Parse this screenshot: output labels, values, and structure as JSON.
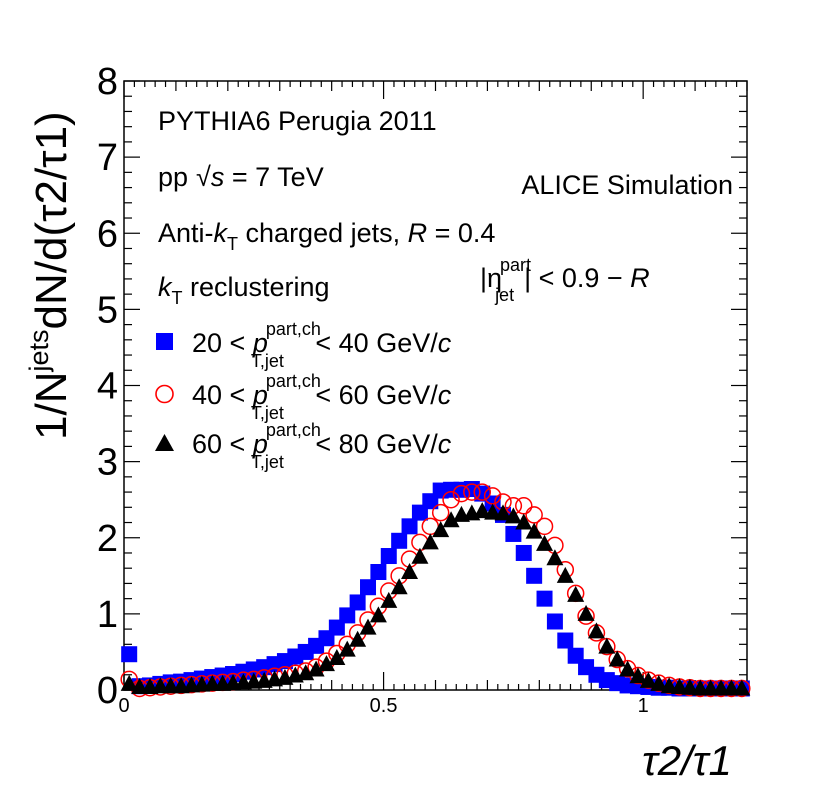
{
  "chart_data": {
    "type": "scatter",
    "title": "",
    "xlabel": "τ2/τ1",
    "ylabel_main": "1/N",
    "ylabel_sup": "jets",
    "ylabel_rest": "dN/d(τ2/τ1)",
    "xlim": [
      0,
      1.2
    ],
    "ylim": [
      0,
      8
    ],
    "x_ticks": [
      {
        "value": 0,
        "label": "0"
      },
      {
        "value": 0.5,
        "label": "0.5"
      },
      {
        "value": 1,
        "label": "1"
      }
    ],
    "y_ticks": [
      {
        "value": 0,
        "label": "0"
      },
      {
        "value": 1,
        "label": "1"
      },
      {
        "value": 2,
        "label": "2"
      },
      {
        "value": 3,
        "label": "3"
      },
      {
        "value": 4,
        "label": "4"
      },
      {
        "value": 5,
        "label": "5"
      },
      {
        "value": 6,
        "label": "6"
      },
      {
        "value": 7,
        "label": "7"
      },
      {
        "value": 8,
        "label": "8"
      }
    ],
    "annotations": {
      "generator": "PYTHIA6 Perugia 2011",
      "energy_pre": "pp",
      "energy_sqrt": "√",
      "energy_s": "s",
      "energy_post": " = 7 TeV",
      "experiment": "ALICE Simulation",
      "jets_pre": "Anti-",
      "jets_k": "k",
      "jets_T": "T",
      "jets_mid": " charged jets, ",
      "jets_R": "R",
      "jets_post": " = 0.4",
      "recl_k": "k",
      "recl_T": "T",
      "recl_post": " reclustering",
      "eta_pre": "|η",
      "eta_sup": "part",
      "eta_sub": "jet",
      "eta_post": "| < 0.9 − ",
      "eta_R": "R"
    },
    "legend_position": "top-left",
    "series": [
      {
        "name": "20 < p_T,jet^part,ch < 40 GeV/c",
        "low": "20 < ",
        "high": " < 40 GeV/",
        "unit_c": "c",
        "p": "p",
        "sup": "part,ch",
        "sub": "T,jet",
        "marker": "square",
        "color": "#0000ff",
        "filled": true,
        "x": [
          0.01,
          0.03,
          0.05,
          0.07,
          0.09,
          0.11,
          0.13,
          0.15,
          0.17,
          0.19,
          0.21,
          0.23,
          0.25,
          0.27,
          0.29,
          0.31,
          0.33,
          0.35,
          0.37,
          0.39,
          0.41,
          0.43,
          0.45,
          0.47,
          0.49,
          0.51,
          0.53,
          0.55,
          0.57,
          0.59,
          0.61,
          0.63,
          0.65,
          0.67,
          0.69,
          0.71,
          0.73,
          0.75,
          0.77,
          0.79,
          0.81,
          0.83,
          0.85,
          0.87,
          0.89,
          0.91,
          0.93,
          0.95,
          0.97,
          0.99,
          1.01,
          1.03,
          1.05,
          1.07,
          1.09,
          1.11,
          1.13,
          1.15,
          1.17,
          1.19
        ],
        "y": [
          0.47,
          0.05,
          0.06,
          0.08,
          0.1,
          0.11,
          0.13,
          0.15,
          0.17,
          0.19,
          0.21,
          0.24,
          0.27,
          0.3,
          0.34,
          0.38,
          0.44,
          0.5,
          0.58,
          0.68,
          0.82,
          0.98,
          1.15,
          1.35,
          1.55,
          1.76,
          1.96,
          2.15,
          2.33,
          2.48,
          2.62,
          2.63,
          2.63,
          2.64,
          2.58,
          2.45,
          2.3,
          2.05,
          1.8,
          1.5,
          1.2,
          0.9,
          0.65,
          0.45,
          0.3,
          0.2,
          0.13,
          0.09,
          0.06,
          0.05,
          0.04,
          0.03,
          0.03,
          0.02,
          0.02,
          0.02,
          0.02,
          0.02,
          0.02,
          0.02
        ]
      },
      {
        "name": "40 < p_T,jet^part,ch < 60 GeV/c",
        "low": "40 < ",
        "high": " < 60 GeV/",
        "unit_c": "c",
        "p": "p",
        "sup": "part,ch",
        "sub": "T,jet",
        "marker": "circle-open",
        "color": "#ff0000",
        "filled": false,
        "x": [
          0.01,
          0.03,
          0.05,
          0.07,
          0.09,
          0.11,
          0.13,
          0.15,
          0.17,
          0.19,
          0.21,
          0.23,
          0.25,
          0.27,
          0.29,
          0.31,
          0.33,
          0.35,
          0.37,
          0.39,
          0.41,
          0.43,
          0.45,
          0.47,
          0.49,
          0.51,
          0.53,
          0.55,
          0.57,
          0.59,
          0.61,
          0.63,
          0.65,
          0.67,
          0.69,
          0.71,
          0.73,
          0.75,
          0.77,
          0.79,
          0.81,
          0.83,
          0.85,
          0.87,
          0.89,
          0.91,
          0.93,
          0.95,
          0.97,
          0.99,
          1.01,
          1.03,
          1.05,
          1.07,
          1.09,
          1.11,
          1.13,
          1.15,
          1.17,
          1.19
        ],
        "y": [
          0.14,
          0.02,
          0.03,
          0.04,
          0.05,
          0.06,
          0.07,
          0.08,
          0.09,
          0.1,
          0.11,
          0.13,
          0.14,
          0.16,
          0.18,
          0.2,
          0.22,
          0.25,
          0.3,
          0.38,
          0.48,
          0.6,
          0.75,
          0.92,
          1.1,
          1.3,
          1.5,
          1.72,
          1.94,
          2.15,
          2.33,
          2.5,
          2.58,
          2.6,
          2.6,
          2.55,
          2.47,
          2.42,
          2.42,
          2.3,
          2.15,
          1.9,
          1.58,
          1.27,
          0.97,
          0.75,
          0.57,
          0.4,
          0.28,
          0.19,
          0.13,
          0.09,
          0.06,
          0.04,
          0.03,
          0.02,
          0.02,
          0.02,
          0.02,
          0.02
        ]
      },
      {
        "name": "60 < p_T,jet^part,ch < 80 GeV/c",
        "low": "60 < ",
        "high": " < 80 GeV/",
        "unit_c": "c",
        "p": "p",
        "sup": "part,ch",
        "sub": "T,jet",
        "marker": "triangle",
        "color": "#000000",
        "filled": true,
        "x": [
          0.01,
          0.03,
          0.05,
          0.07,
          0.09,
          0.11,
          0.13,
          0.15,
          0.17,
          0.19,
          0.21,
          0.23,
          0.25,
          0.27,
          0.29,
          0.31,
          0.33,
          0.35,
          0.37,
          0.39,
          0.41,
          0.43,
          0.45,
          0.47,
          0.49,
          0.51,
          0.53,
          0.55,
          0.57,
          0.59,
          0.61,
          0.63,
          0.65,
          0.67,
          0.69,
          0.71,
          0.73,
          0.75,
          0.77,
          0.79,
          0.81,
          0.83,
          0.85,
          0.87,
          0.89,
          0.91,
          0.93,
          0.95,
          0.97,
          0.99,
          1.01,
          1.03,
          1.05,
          1.07,
          1.09,
          1.11,
          1.13,
          1.15,
          1.17,
          1.19
        ],
        "y": [
          0.08,
          0.04,
          0.04,
          0.05,
          0.05,
          0.05,
          0.06,
          0.07,
          0.08,
          0.08,
          0.09,
          0.1,
          0.11,
          0.12,
          0.14,
          0.16,
          0.19,
          0.22,
          0.27,
          0.34,
          0.42,
          0.53,
          0.66,
          0.82,
          0.98,
          1.17,
          1.35,
          1.55,
          1.75,
          1.94,
          2.1,
          2.23,
          2.3,
          2.32,
          2.35,
          2.33,
          2.32,
          2.28,
          2.2,
          2.08,
          1.92,
          1.73,
          1.5,
          1.25,
          1.0,
          0.77,
          0.57,
          0.4,
          0.27,
          0.18,
          0.12,
          0.08,
          0.05,
          0.04,
          0.03,
          0.02,
          0.02,
          0.02,
          0.02,
          0.02
        ]
      }
    ]
  }
}
